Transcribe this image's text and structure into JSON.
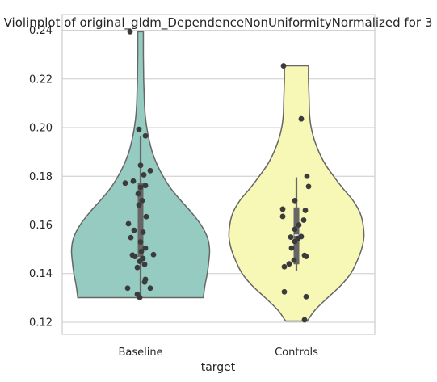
{
  "chart_data": {
    "type": "violin",
    "title": "Violinplot of original_gldm_DependenceNonUniformityNormalized for 3",
    "xlabel": "target",
    "ylabel": "",
    "categories": [
      "Baseline",
      "Controls"
    ],
    "ylim": [
      0.115,
      0.2465
    ],
    "yticks": [
      0.12,
      0.14,
      0.16,
      0.18,
      0.2,
      0.22,
      0.24
    ],
    "ytick_labels": [
      "0.12",
      "0.14",
      "0.16",
      "0.18",
      "0.20",
      "0.22",
      "0.24"
    ],
    "grid": true,
    "colors": {
      "baseline_fill": "#95cbc1",
      "controls_fill": "#f7f7b6",
      "outline": "#666666",
      "points": "#3b3b3b",
      "grid": "#cccccc",
      "box": "#666666",
      "median": "#ffffff"
    },
    "series": [
      {
        "name": "Baseline",
        "y_range": [
          0.1301,
          0.2394
        ],
        "quartiles": [
          0.1469,
          0.153,
          0.1772
        ],
        "whiskers": [
          0.1309,
          0.1963
        ],
        "density": [
          [
            0.1301,
            0.81
          ],
          [
            0.135,
            0.83
          ],
          [
            0.14,
            0.86
          ],
          [
            0.145,
            0.88
          ],
          [
            0.15,
            0.89
          ],
          [
            0.155,
            0.86
          ],
          [
            0.16,
            0.78
          ],
          [
            0.165,
            0.66
          ],
          [
            0.17,
            0.52
          ],
          [
            0.175,
            0.39
          ],
          [
            0.18,
            0.29
          ],
          [
            0.185,
            0.21
          ],
          [
            0.19,
            0.15
          ],
          [
            0.195,
            0.11
          ],
          [
            0.2,
            0.08
          ],
          [
            0.205,
            0.06
          ],
          [
            0.21,
            0.05
          ],
          [
            0.215,
            0.045
          ],
          [
            0.22,
            0.04
          ],
          [
            0.225,
            0.038
          ],
          [
            0.23,
            0.036
          ],
          [
            0.235,
            0.036
          ],
          [
            0.2394,
            0.036
          ]
        ],
        "points": [
          [
            -0.13,
            0.2394
          ],
          [
            -0.02,
            0.1993
          ],
          [
            0.06,
            0.1966
          ],
          [
            0.0,
            0.1845
          ],
          [
            0.12,
            0.1823
          ],
          [
            0.04,
            0.1806
          ],
          [
            -0.09,
            0.178
          ],
          [
            -0.19,
            0.1772
          ],
          [
            0.06,
            0.1762
          ],
          [
            0.0,
            0.1755
          ],
          [
            -0.03,
            0.1728
          ],
          [
            0.02,
            0.17
          ],
          [
            -0.02,
            0.1682
          ],
          [
            0.07,
            0.1634
          ],
          [
            -0.15,
            0.1605
          ],
          [
            -0.08,
            0.1578
          ],
          [
            0.03,
            0.157
          ],
          [
            -0.12,
            0.1548
          ],
          [
            0.0,
            0.153
          ],
          [
            0.06,
            0.1505
          ],
          [
            0.01,
            0.1491
          ],
          [
            0.16,
            0.1478
          ],
          [
            -0.1,
            0.1476
          ],
          [
            -0.07,
            0.147
          ],
          [
            0.03,
            0.1462
          ],
          [
            -0.01,
            0.145
          ],
          [
            0.05,
            0.1438
          ],
          [
            -0.04,
            0.1425
          ],
          [
            0.06,
            0.1376
          ],
          [
            0.05,
            0.1365
          ],
          [
            -0.16,
            0.134
          ],
          [
            0.12,
            0.134
          ],
          [
            -0.04,
            0.1315
          ],
          [
            -0.01,
            0.1302
          ]
        ]
      },
      {
        "name": "Controls",
        "y_range": [
          0.1205,
          0.2254
        ],
        "quartiles": [
          0.1438,
          0.1558,
          0.1672
        ],
        "whiskers": [
          0.141,
          0.1796
        ],
        "density": [
          [
            0.1205,
            0.14
          ],
          [
            0.125,
            0.24
          ],
          [
            0.13,
            0.4
          ],
          [
            0.135,
            0.57
          ],
          [
            0.14,
            0.7
          ],
          [
            0.145,
            0.78
          ],
          [
            0.15,
            0.84
          ],
          [
            0.155,
            0.87
          ],
          [
            0.16,
            0.86
          ],
          [
            0.165,
            0.82
          ],
          [
            0.17,
            0.73
          ],
          [
            0.175,
            0.6
          ],
          [
            0.18,
            0.48
          ],
          [
            0.185,
            0.37
          ],
          [
            0.19,
            0.29
          ],
          [
            0.195,
            0.23
          ],
          [
            0.2,
            0.19
          ],
          [
            0.205,
            0.17
          ],
          [
            0.21,
            0.165
          ],
          [
            0.215,
            0.16
          ],
          [
            0.22,
            0.155
          ],
          [
            0.2254,
            0.155
          ]
        ],
        "points": [
          [
            -0.16,
            0.2254
          ],
          [
            0.06,
            0.2036
          ],
          [
            0.13,
            0.18
          ],
          [
            0.15,
            0.1758
          ],
          [
            -0.02,
            0.17
          ],
          [
            -0.17,
            0.1665
          ],
          [
            0.11,
            0.166
          ],
          [
            -0.17,
            0.1635
          ],
          [
            0.09,
            0.162
          ],
          [
            0.03,
            0.16
          ],
          [
            -0.02,
            0.1582
          ],
          [
            0.06,
            0.1552
          ],
          [
            -0.07,
            0.155
          ],
          [
            0.02,
            0.1545
          ],
          [
            -0.02,
            0.1532
          ],
          [
            -0.06,
            0.1505
          ],
          [
            0.1,
            0.1475
          ],
          [
            0.12,
            0.147
          ],
          [
            -0.03,
            0.1455
          ],
          [
            -0.09,
            0.144
          ],
          [
            -0.15,
            0.1428
          ],
          [
            -0.15,
            0.1325
          ],
          [
            0.12,
            0.1305
          ],
          [
            0.1,
            0.121
          ]
        ]
      }
    ]
  }
}
